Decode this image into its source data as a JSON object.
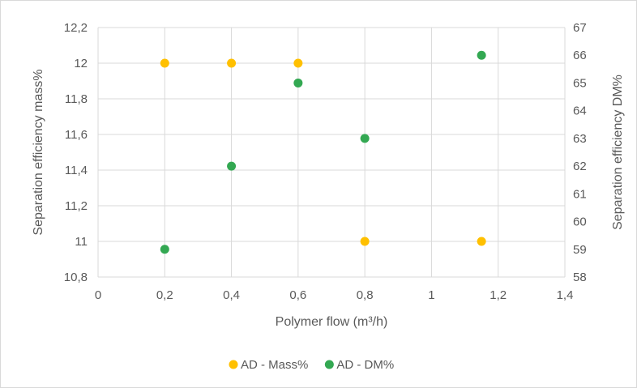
{
  "chart_data": {
    "type": "scatter",
    "title": "",
    "xlabel": "Polymer flow (m³/h)",
    "ylabel_left": "Separation efficiency mass%",
    "ylabel_right": "Separation efficiency DM%",
    "xlim": [
      0,
      1.4
    ],
    "ylim_left": [
      10.8,
      12.2
    ],
    "ylim_right": [
      58,
      67
    ],
    "x_ticks": [
      0,
      0.2,
      0.4,
      0.6,
      0.8,
      1,
      1.2,
      1.4
    ],
    "x_tick_labels": [
      "0",
      "0,2",
      "0,4",
      "0,6",
      "0,8",
      "1",
      "1,2",
      "1,4"
    ],
    "y_left_ticks": [
      10.8,
      11,
      11.2,
      11.4,
      11.6,
      11.8,
      12,
      12.2
    ],
    "y_left_tick_labels": [
      "10,8",
      "11",
      "11,2",
      "11,4",
      "11,6",
      "11,8",
      "12",
      "12,2"
    ],
    "y_right_ticks": [
      58,
      59,
      60,
      61,
      62,
      63,
      64,
      65,
      66,
      67
    ],
    "y_right_tick_labels": [
      "58",
      "59",
      "60",
      "61",
      "62",
      "63",
      "64",
      "65",
      "66",
      "67"
    ],
    "grid": true,
    "legend_position": "bottom",
    "series": [
      {
        "name": "AD - Mass%",
        "axis": "left",
        "color": "#FFC000",
        "x": [
          0.2,
          0.4,
          0.6,
          0.8,
          1.15
        ],
        "y": [
          12,
          12,
          12,
          11,
          11
        ]
      },
      {
        "name": "AD - DM%",
        "axis": "right",
        "color": "#33A852",
        "x": [
          0.2,
          0.4,
          0.6,
          0.8,
          1.15
        ],
        "y": [
          59,
          62,
          65,
          63,
          66
        ]
      }
    ]
  },
  "colors": {
    "grid": "#d9d9d9",
    "axis_text": "#595959",
    "frame_border": "#d9d9d9"
  }
}
